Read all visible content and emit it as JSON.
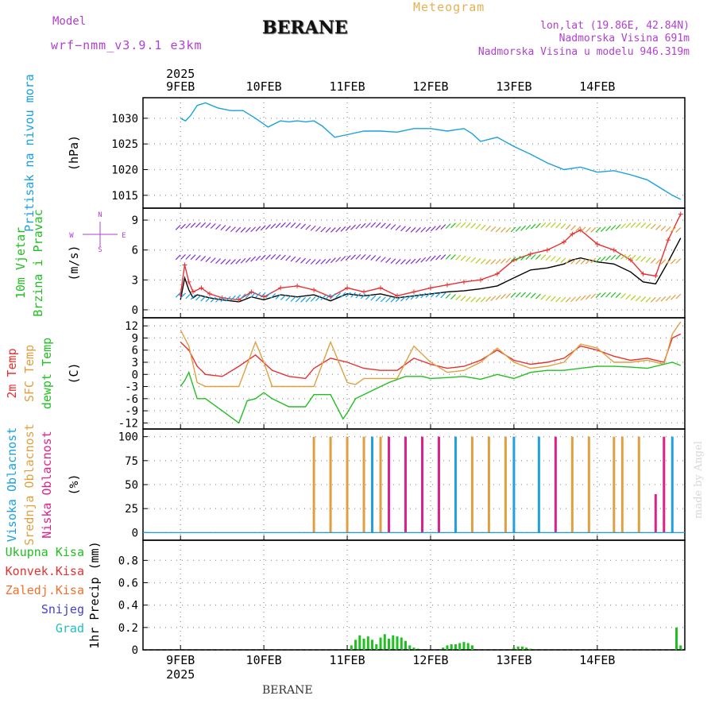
{
  "header": {
    "model_label": "Model",
    "model_version": "wrf−nmm_v3.9.1  e3km",
    "station": "BERANE",
    "meteogram": "Meteogram",
    "lonlat": "lon,lat (19.86E, 42.84N)",
    "altitude": "Nadmorska Visina 691m",
    "model_altitude": "Nadmorska Visina u modelu 946.319m"
  },
  "footer": {
    "station": "BERANE",
    "watermark": "made by Angel"
  },
  "chart_data": {
    "type": "meteogram",
    "x_days": [
      "9FEB",
      "10FEB",
      "11FEB",
      "12FEB",
      "13FEB",
      "14FEB"
    ],
    "year": "2025",
    "panels": [
      {
        "id": "pressure",
        "type": "line",
        "labels": [
          "Pritisak na nivou mora"
        ],
        "unit": "(hPa)",
        "ylim": [
          1012.5,
          1034
        ],
        "ticks": [
          1015,
          1020,
          1025,
          1030
        ],
        "series": [
          {
            "name": "Pritisak na nivou mora",
            "color": "#1aa0e0",
            "x": [
              0,
              0.06,
              0.12,
              0.2,
              0.3,
              0.45,
              0.6,
              0.75,
              0.9,
              1.05,
              1.2,
              1.3,
              1.4,
              1.5,
              1.6,
              1.7,
              1.85,
              2.0,
              2.2,
              2.4,
              2.6,
              2.8,
              3.0,
              3.2,
              3.4,
              3.5,
              3.6,
              3.8,
              4.0,
              4.2,
              4.4,
              4.6,
              4.8,
              5.0,
              5.2,
              5.4,
              5.5,
              5.6,
              5.7,
              5.8,
              5.9,
              6.0
            ],
            "values": [
              1030,
              1029.5,
              1030.5,
              1032.5,
              1033,
              1032,
              1031.5,
              1031.5,
              1030,
              1028.3,
              1029.5,
              1029.3,
              1029.5,
              1029.3,
              1029.5,
              1028.5,
              1026.3,
              1026.8,
              1027.5,
              1027.5,
              1027.3,
              1028,
              1028,
              1027.5,
              1028,
              1027,
              1025.5,
              1026.3,
              1024.5,
              1023,
              1021.3,
              1020,
              1020.5,
              1019.5,
              1019.8,
              1019,
              1018.5,
              1018,
              1017,
              1016,
              1015,
              1014.2
            ]
          }
        ]
      },
      {
        "id": "wind",
        "type": "line+barbs",
        "labels": [
          "10m Vjetar",
          "Brzina i Pravac"
        ],
        "unit": "(m/s)",
        "ylim": [
          -0.8,
          10.2
        ],
        "ticks": [
          0,
          3,
          6,
          9
        ],
        "compass": {
          "n": "N",
          "s": "S",
          "e": "E",
          "w": "W"
        },
        "barb_rows": [
          8.5,
          5.3,
          1.5
        ],
        "series": [
          {
            "name": "wind speed",
            "color": "#000000",
            "x": [
              0,
              0.05,
              0.1,
              0.15,
              0.2,
              0.35,
              0.5,
              0.7,
              0.85,
              1.0,
              1.2,
              1.4,
              1.6,
              1.8,
              2.0,
              2.2,
              2.4,
              2.6,
              2.8,
              3.0,
              3.2,
              3.4,
              3.6,
              3.8,
              4.0,
              4.2,
              4.4,
              4.6,
              4.7,
              4.8,
              5.0,
              5.2,
              5.4,
              5.55,
              5.7,
              5.85,
              6.0
            ],
            "values": [
              1,
              3.2,
              2,
              1.2,
              1.5,
              1.2,
              1.0,
              0.8,
              1.3,
              1.0,
              1.5,
              1.3,
              1.5,
              0.9,
              1.6,
              1.4,
              1.6,
              1.2,
              1.4,
              1.6,
              1.8,
              1.9,
              2.1,
              2.4,
              3.2,
              4.0,
              4.2,
              4.6,
              5.0,
              5.2,
              4.8,
              4.6,
              3.8,
              2.8,
              2.6,
              4.8,
              7.2
            ]
          },
          {
            "name": "gust",
            "color": "#e83030",
            "x": [
              0,
              0.05,
              0.1,
              0.15,
              0.25,
              0.35,
              0.5,
              0.7,
              0.85,
              1.0,
              1.2,
              1.4,
              1.6,
              1.8,
              2.0,
              2.2,
              2.4,
              2.6,
              2.8,
              3.0,
              3.2,
              3.4,
              3.6,
              3.8,
              4.0,
              4.2,
              4.4,
              4.6,
              4.7,
              4.8,
              5.0,
              5.2,
              5.4,
              5.55,
              5.7,
              5.85,
              6.0
            ],
            "values": [
              1.5,
              4.5,
              2.8,
              1.8,
              2.2,
              1.6,
              1.2,
              1.0,
              1.8,
              1.3,
              2.2,
              2.4,
              2.0,
              1.3,
              2.2,
              1.8,
              2.2,
              1.4,
              1.8,
              2.2,
              2.5,
              2.8,
              3.0,
              3.6,
              5.0,
              5.6,
              6.0,
              6.8,
              7.6,
              8.0,
              6.6,
              6.0,
              5.0,
              3.6,
              3.4,
              7.0,
              9.6
            ]
          }
        ]
      },
      {
        "id": "temperature",
        "type": "line",
        "labels": [
          "2m Temp",
          "SFC Temp",
          "dewpt Temp"
        ],
        "unit": "(C)",
        "ylim": [
          -13.5,
          14
        ],
        "ticks": [
          -12,
          -9,
          -6,
          -3,
          0,
          3,
          6,
          9,
          12
        ],
        "series": [
          {
            "name": "2m Temp",
            "color": "#e83030",
            "x": [
              0,
              0.1,
              0.2,
              0.3,
              0.5,
              0.7,
              0.9,
              1.1,
              1.3,
              1.5,
              1.6,
              1.8,
              2.0,
              2.2,
              2.4,
              2.6,
              2.8,
              3.0,
              3.2,
              3.4,
              3.6,
              3.8,
              4.0,
              4.2,
              4.4,
              4.6,
              4.8,
              5.0,
              5.2,
              5.4,
              5.6,
              5.8,
              5.9,
              6.0
            ],
            "values": [
              8,
              6,
              2,
              0,
              -0.5,
              2,
              4.8,
              1,
              -0.5,
              -1,
              1.5,
              4,
              3,
              1.5,
              1,
              1,
              4,
              2.5,
              1.5,
              2,
              3.5,
              6,
              3.5,
              2.5,
              3,
              4,
              7,
              6,
              4.5,
              3.5,
              4,
              3,
              9,
              10
            ]
          },
          {
            "name": "SFC Temp",
            "color": "#e0a040",
            "x": [
              0,
              0.1,
              0.2,
              0.3,
              0.5,
              0.7,
              0.9,
              1.0,
              1.1,
              1.3,
              1.5,
              1.6,
              1.8,
              2.0,
              2.1,
              2.2,
              2.4,
              2.6,
              2.8,
              3.0,
              3.2,
              3.4,
              3.6,
              3.8,
              4.0,
              4.2,
              4.4,
              4.6,
              4.8,
              5.0,
              5.2,
              5.4,
              5.6,
              5.8,
              5.9,
              6.0
            ],
            "values": [
              11,
              7,
              -2,
              -3,
              -3,
              -3,
              8,
              3,
              -3,
              -3,
              -3,
              -3,
              8,
              -2,
              -2.5,
              -1,
              -1,
              -1,
              7,
              3,
              0.5,
              1,
              3,
              6.5,
              3,
              1.5,
              2,
              3,
              7.5,
              6.5,
              3,
              3,
              3.5,
              2.5,
              10,
              13
            ]
          },
          {
            "name": "dewpt Temp",
            "color": "#20c020",
            "x": [
              0,
              0.05,
              0.1,
              0.2,
              0.3,
              0.5,
              0.7,
              0.8,
              0.9,
              1.0,
              1.1,
              1.3,
              1.5,
              1.6,
              1.8,
              1.95,
              2.0,
              2.1,
              2.3,
              2.5,
              2.7,
              2.9,
              3.0,
              3.2,
              3.4,
              3.6,
              3.8,
              4.0,
              4.2,
              4.4,
              4.6,
              4.8,
              5.0,
              5.2,
              5.4,
              5.6,
              5.8,
              5.9,
              6.0
            ],
            "values": [
              -3,
              -1.5,
              0.5,
              -6,
              -6,
              -9,
              -12,
              -6.5,
              -6,
              -4.5,
              -6,
              -8,
              -8,
              -5,
              -5,
              -11,
              -9.5,
              -6,
              -4,
              -2,
              -0.5,
              -0.5,
              -1,
              -0.8,
              -0.5,
              -1.2,
              0,
              -1,
              0.5,
              1,
              1,
              1.5,
              2,
              2,
              1.8,
              1.5,
              2.5,
              3,
              2.2
            ]
          }
        ]
      },
      {
        "id": "clouds",
        "type": "bar",
        "labels": [
          "Visoka Oblacnost",
          "Srednja Oblacnost",
          "Niska Oblacnost"
        ],
        "unit": "(%)",
        "ylim": [
          -8,
          108
        ],
        "ticks": [
          0,
          25,
          50,
          75,
          100
        ],
        "series": [
          {
            "name": "Visoka Oblacnost",
            "color": "#20a0e0",
            "x": [
              2.3,
              3.3,
              4.0,
              4.3,
              5.9
            ],
            "values": [
              100,
              100,
              100,
              100,
              100
            ]
          },
          {
            "name": "Srednja Oblacnost",
            "color": "#e0a040",
            "x": [
              1.6,
              1.8,
              2.0,
              2.2,
              2.4,
              3.5,
              3.7,
              3.9,
              4.7,
              4.9,
              5.2,
              5.3,
              5.5
            ],
            "values": [
              100,
              100,
              100,
              100,
              100,
              100,
              100,
              100,
              100,
              100,
              100,
              100,
              100
            ]
          },
          {
            "name": "Niska Oblacnost",
            "color": "#e0208a",
            "x": [
              2.5,
              2.7,
              2.9,
              3.1,
              4.5,
              5.7,
              5.8
            ],
            "values": [
              100,
              100,
              100,
              100,
              100,
              40,
              100
            ]
          }
        ]
      },
      {
        "id": "precip",
        "type": "bar",
        "labels": [
          "Ukupna Kisa",
          "Konvek.Kisa",
          "Zaledj.Kisa",
          "Snijeg",
          "Grad"
        ],
        "label_colors": [
          "#20c020",
          "#e83030",
          "#f07030",
          "#4040d0",
          "#20c0c0"
        ],
        "unit": "1hr Precip (mm)",
        "ylim": [
          0,
          0.98
        ],
        "ticks": [
          0,
          0.2,
          0.4,
          0.6,
          0.8
        ],
        "series": [
          {
            "name": "Ukupna Kisa",
            "color": "#20c020",
            "x": [
              2.05,
              2.1,
              2.15,
              2.2,
              2.25,
              2.3,
              2.35,
              2.4,
              2.45,
              2.5,
              2.55,
              2.6,
              2.65,
              2.7,
              2.75,
              2.8,
              2.85,
              3.15,
              3.2,
              3.25,
              3.3,
              3.35,
              3.4,
              3.45,
              3.5,
              4.0,
              4.05,
              4.1,
              4.15,
              4.2,
              5.95,
              6.0
            ],
            "values": [
              0.04,
              0.09,
              0.13,
              0.1,
              0.12,
              0.09,
              0.05,
              0.11,
              0.14,
              0.1,
              0.13,
              0.12,
              0.11,
              0.08,
              0.04,
              0.02,
              0.01,
              0.02,
              0.04,
              0.05,
              0.05,
              0.06,
              0.07,
              0.06,
              0.04,
              0.02,
              0.03,
              0.03,
              0.02,
              0.01,
              0.2,
              0.04
            ]
          }
        ]
      }
    ]
  }
}
